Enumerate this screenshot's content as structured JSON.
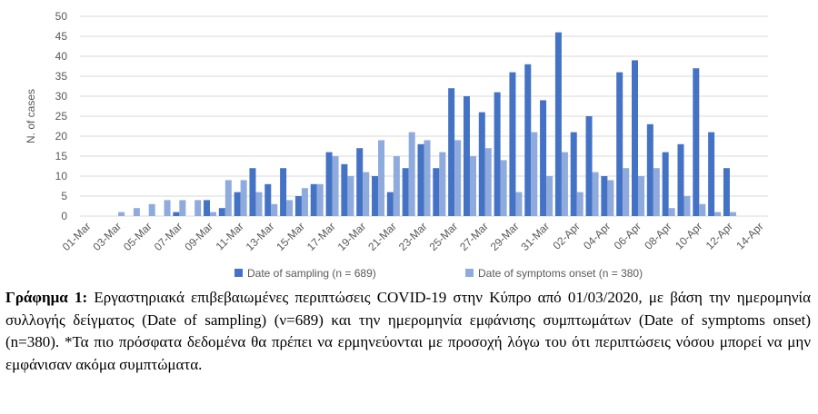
{
  "chart_data": {
    "type": "bar",
    "title": "",
    "xlabel": "",
    "ylabel": "N. of cases",
    "ylim": [
      0,
      50
    ],
    "yticks": [
      0,
      5,
      10,
      15,
      20,
      25,
      30,
      35,
      40,
      45,
      50
    ],
    "grid": "horizontal",
    "legend_position": "bottom",
    "categories": [
      "01-Mar",
      "02-Mar",
      "03-Mar",
      "04-Mar",
      "05-Mar",
      "06-Mar",
      "07-Mar",
      "08-Mar",
      "09-Mar",
      "10-Mar",
      "11-Mar",
      "12-Mar",
      "13-Mar",
      "14-Mar",
      "15-Mar",
      "16-Mar",
      "17-Mar",
      "18-Mar",
      "19-Mar",
      "20-Mar",
      "21-Mar",
      "22-Mar",
      "23-Mar",
      "24-Mar",
      "25-Mar",
      "26-Mar",
      "27-Mar",
      "28-Mar",
      "29-Mar",
      "30-Mar",
      "31-Mar",
      "01-Apr",
      "02-Apr",
      "03-Apr",
      "04-Apr",
      "05-Apr",
      "06-Apr",
      "07-Apr",
      "08-Apr",
      "09-Apr",
      "10-Apr",
      "11-Apr",
      "12-Apr",
      "13-Apr",
      "14-Apr"
    ],
    "tick_labels": [
      "01-Mar",
      "03-Mar",
      "05-Mar",
      "07-Mar",
      "09-Mar",
      "11-Mar",
      "13-Mar",
      "15-Mar",
      "17-Mar",
      "19-Mar",
      "21-Mar",
      "23-Mar",
      "25-Mar",
      "27-Mar",
      "29-Mar",
      "31-Mar",
      "02-Apr",
      "04-Apr",
      "06-Apr",
      "08-Apr",
      "10-Apr",
      "12-Apr",
      "14-Apr"
    ],
    "series": [
      {
        "name": "Date of sampling (n = 689)",
        "color": "#4472C4",
        "values": [
          0,
          0,
          0,
          0,
          0,
          0,
          1,
          0,
          4,
          2,
          6,
          12,
          8,
          12,
          5,
          8,
          16,
          13,
          17,
          10,
          6,
          12,
          18,
          12,
          32,
          30,
          26,
          31,
          36,
          38,
          29,
          46,
          21,
          25,
          10,
          36,
          39,
          23,
          16,
          18,
          37,
          21,
          12,
          0,
          0
        ]
      },
      {
        "name": "Date of symptoms onset (n = 380)",
        "color": "#8FAADC",
        "values": [
          0,
          0,
          1,
          2,
          3,
          4,
          4,
          4,
          1,
          9,
          9,
          6,
          3,
          4,
          7,
          8,
          15,
          10,
          11,
          19,
          15,
          21,
          19,
          16,
          19,
          15,
          17,
          14,
          6,
          21,
          10,
          16,
          6,
          11,
          9,
          12,
          10,
          12,
          2,
          5,
          3,
          1,
          1,
          0,
          0
        ]
      }
    ]
  },
  "caption": {
    "label": "Γράφημα 1:",
    "text": " Εργαστηριακά επιβεβαιωμένες περιπτώσεις COVID-19 στην Κύπρο από 01/03/2020, με βάση την ημερομηνία συλλογής δείγματος (Date of sampling) (ν=689) και την ημερομηνία εμφάνισης συμπτωμάτων (Date of symptoms onset) (n=380). *Τα πιο πρόσφατα δεδομένα θα πρέπει να ερμηνεύονται με προσοχή λόγω του ότι περιπτώσεις νόσου μπορεί να μην εμφάνισαν ακόμα συμπτώματα."
  }
}
